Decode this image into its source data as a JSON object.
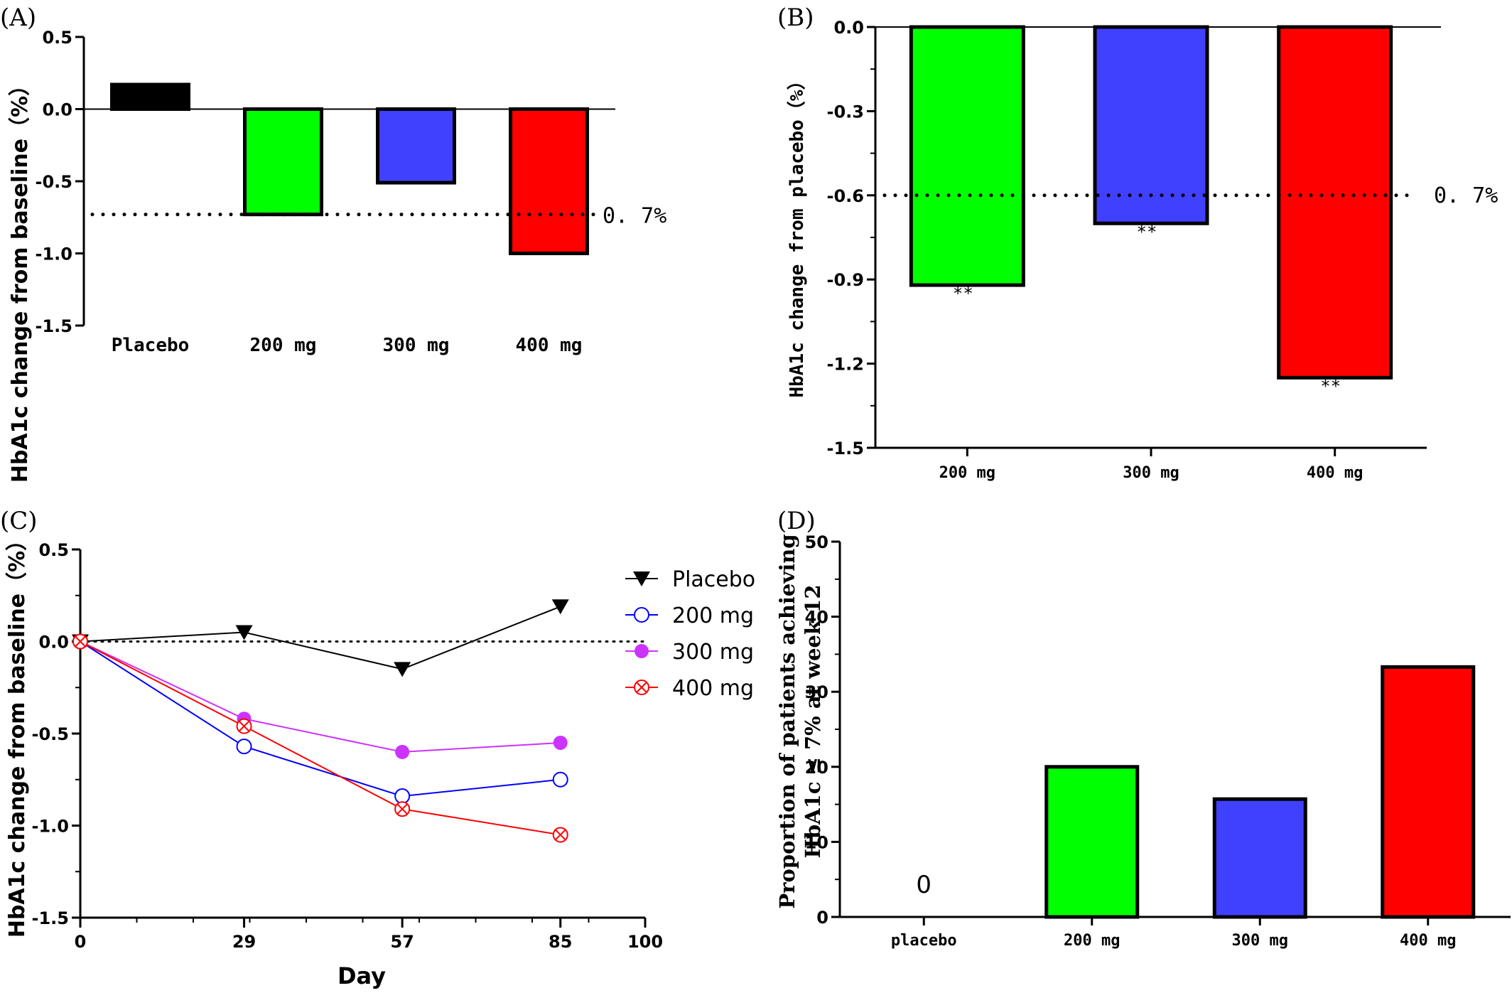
{
  "chart_data": [
    {
      "panel": "(A)",
      "type": "bar",
      "categories": [
        "Placebo",
        "200 mg",
        "300 mg",
        "400 mg"
      ],
      "values": [
        0.17,
        -0.73,
        -0.51,
        -1.0
      ],
      "colors": [
        "#000000",
        "#00ff00",
        "#4040ff",
        "#ff0000"
      ],
      "ylabel": "HbA1c change from baseline（%）",
      "ylim": [
        -1.5,
        0.5
      ],
      "yticks": [
        0.5,
        0.0,
        -0.5,
        -1.0,
        -1.5
      ],
      "yticklabels": [
        "0.5",
        "0.0",
        "-0.5",
        "-1.0",
        "-1.5"
      ],
      "reference": {
        "value": -0.73,
        "label": "0. 7%"
      }
    },
    {
      "panel": "(B)",
      "type": "bar",
      "categories": [
        "200 mg",
        "300 mg",
        "400 mg"
      ],
      "values": [
        -0.92,
        -0.7,
        -1.25
      ],
      "colors": [
        "#00ff00",
        "#4040ff",
        "#ff0000"
      ],
      "annotations": [
        "**",
        "**",
        "**"
      ],
      "ylabel": "HbA1c change from placebo（%）",
      "ylim": [
        -1.5,
        0.0
      ],
      "yticks": [
        0.0,
        -0.3,
        -0.6,
        -0.9,
        -1.2,
        -1.5
      ],
      "yticklabels": [
        "0.0",
        "-0.3",
        "-0.6",
        "-0.9",
        "-1.2",
        "-1.5"
      ],
      "reference": {
        "value": -0.6,
        "label": "0. 7%"
      }
    },
    {
      "panel": "(C)",
      "type": "line",
      "x": [
        0,
        29,
        57,
        85
      ],
      "series": [
        {
          "name": "Placebo",
          "values": [
            0.0,
            0.05,
            -0.15,
            0.19
          ],
          "color": "#000000",
          "marker": "triangle-down"
        },
        {
          "name": "200 mg",
          "values": [
            0.0,
            -0.57,
            -0.84,
            -0.75
          ],
          "color": "#0000ff",
          "marker": "open-circle"
        },
        {
          "name": "300 mg",
          "values": [
            0.0,
            -0.42,
            -0.6,
            -0.55
          ],
          "color": "#cc33ff",
          "marker": "filled-circle"
        },
        {
          "name": "400 mg",
          "values": [
            0.0,
            -0.46,
            -0.91,
            -1.05
          ],
          "color": "#ff0000",
          "marker": "circle-x"
        }
      ],
      "xlabel": "Day",
      "ylabel": "HbA1c change from baseline（%）",
      "xlim": [
        0,
        100
      ],
      "ylim": [
        -1.5,
        0.5
      ],
      "xticks": [
        0,
        29,
        57,
        85,
        100
      ],
      "xticklabels": [
        "0",
        "29",
        "57",
        "85",
        "100"
      ],
      "yticks": [
        0.5,
        0.0,
        -0.5,
        -1.0,
        -1.5
      ],
      "yticklabels": [
        "0.5",
        "0.0",
        "-0.5",
        "-1.0",
        "-1.5"
      ],
      "legend": "right"
    },
    {
      "panel": "(D)",
      "type": "bar",
      "categories": [
        "placebo",
        "200 mg",
        "300 mg",
        "400 mg"
      ],
      "values": [
        0,
        20,
        15.7,
        33.3
      ],
      "colors": [
        "#000000",
        "#00ff00",
        "#4040ff",
        "#ff0000"
      ],
      "value_labels": [
        "0",
        "",
        "",
        ""
      ],
      "ylabel_line1": "Proportion of patients achieving",
      "ylabel_line2": "HbA1c ≤ 7% at week 12",
      "ylim": [
        0,
        50
      ],
      "yticks": [
        0,
        10,
        20,
        30,
        40,
        50
      ],
      "yticklabels": [
        "0",
        "10",
        "20",
        "30",
        "40",
        "50"
      ]
    }
  ]
}
